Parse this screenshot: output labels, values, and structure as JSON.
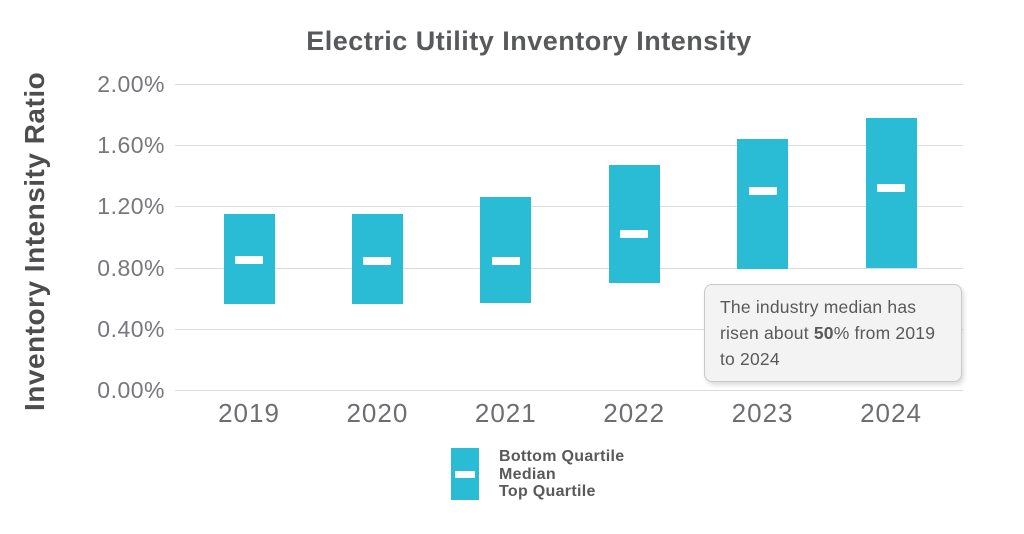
{
  "page": {
    "background": "#ffffff"
  },
  "chart_data": {
    "type": "bar",
    "subtype": "floating-range-bars-with-median-marker",
    "title": "Electric Utility Inventory Intensity",
    "xlabel": "",
    "ylabel": "Inventory Intensity Ratio",
    "categories": [
      "2019",
      "2020",
      "2021",
      "2022",
      "2023",
      "2024"
    ],
    "series": [
      {
        "name": "Bottom Quartile",
        "values": [
          0.56,
          0.56,
          0.57,
          0.7,
          0.79,
          0.8
        ]
      },
      {
        "name": "Median",
        "values": [
          0.85,
          0.84,
          0.84,
          1.02,
          1.3,
          1.32
        ]
      },
      {
        "name": "Top Quartile",
        "values": [
          1.15,
          1.15,
          1.26,
          1.47,
          1.64,
          1.78
        ]
      }
    ],
    "unit": "%",
    "ylim": [
      0.0,
      2.0
    ],
    "y_ticks": [
      {
        "label": "2.00%",
        "value": 2.0
      },
      {
        "label": "1.60%",
        "value": 1.6
      },
      {
        "label": "1.20%",
        "value": 1.2
      },
      {
        "label": "0.80%",
        "value": 0.8
      },
      {
        "label": "0.40%",
        "value": 0.4
      },
      {
        "label": "0.00%",
        "value": 0.0
      }
    ],
    "grid": "horizontal",
    "legend_position": "bottom-center",
    "bar_color": "#2abbd5",
    "median_marker_color": "#ffffff",
    "gridline_color": "#dcdcdc",
    "title_color": "#58595b",
    "tick_color": "#77787b"
  },
  "legend": {
    "items": [
      "Bottom Quartile",
      "Median",
      "Top Quartile"
    ]
  },
  "annotation": {
    "prefix": "The industry median has risen about ",
    "bold": "50",
    "suffix": "% from 2019 to 2024"
  }
}
